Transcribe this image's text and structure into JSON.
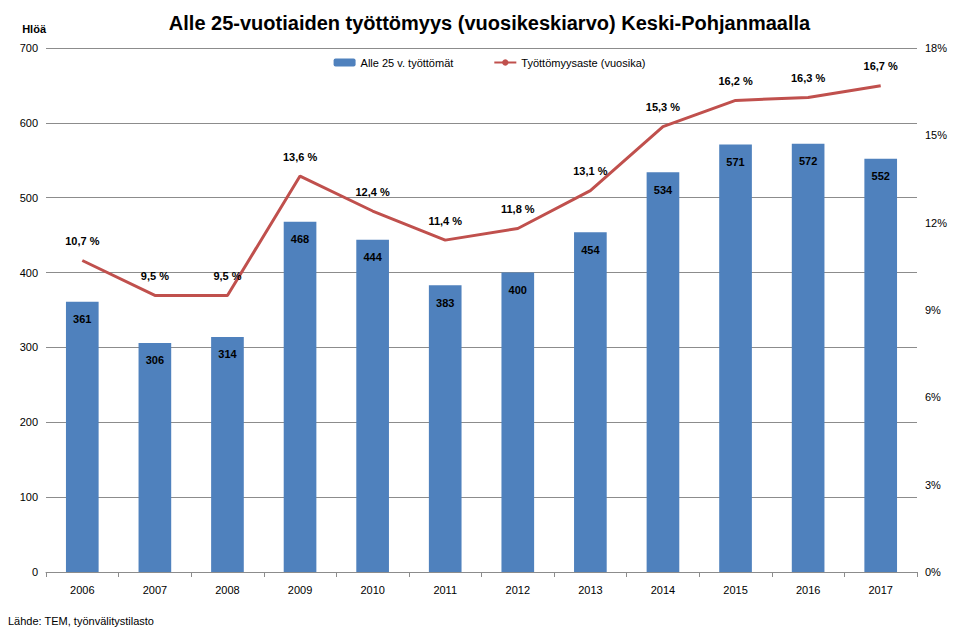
{
  "chart_data": {
    "type": "bar",
    "title": "Alle 25-vuotiaiden työttömyys (vuosikeskiarvo) Keski-Pohjanmaalla",
    "ylabel": "Hlöä",
    "annotations": [
      "Lähde: TEM, työnvälitystilasto"
    ],
    "categories": [
      "2006",
      "2007",
      "2008",
      "2009",
      "2010",
      "2011",
      "2012",
      "2013",
      "2014",
      "2015",
      "2016",
      "2017"
    ],
    "series": [
      {
        "name": "Alle 25 v. työttömät",
        "type": "bar",
        "color": "#4f81bd",
        "values": [
          361,
          306,
          314,
          468,
          444,
          383,
          400,
          454,
          534,
          571,
          572,
          552
        ]
      },
      {
        "name": "Työttömyysaste (vuosika)",
        "type": "line",
        "axis": "y2",
        "color": "#c0504d",
        "values": [
          10.7,
          9.5,
          9.5,
          13.6,
          12.4,
          11.4,
          11.8,
          13.1,
          15.3,
          16.2,
          16.3,
          16.7
        ],
        "value_labels": [
          "10,7 %",
          "9,5 %",
          "9,5 %",
          "13,6 %",
          "12,4 %",
          "11,4 %",
          "11,8 %",
          "13,1 %",
          "15,3 %",
          "16,2 %",
          "16,3 %",
          "16,7 %"
        ]
      }
    ],
    "ylim": [
      0,
      700
    ],
    "yticks": [
      0,
      100,
      200,
      300,
      400,
      500,
      600,
      700
    ],
    "y2lim": [
      0,
      18
    ],
    "y2ticks": [
      {
        "value": 0,
        "label": "0%"
      },
      {
        "value": 3,
        "label": "3%"
      },
      {
        "value": 6,
        "label": "6%"
      },
      {
        "value": 9,
        "label": "9%"
      },
      {
        "value": 12,
        "label": "12%"
      },
      {
        "value": 15,
        "label": "15%"
      },
      {
        "value": 18,
        "label": "18%"
      }
    ],
    "grid": true,
    "legend": "top",
    "data_labels": true
  }
}
